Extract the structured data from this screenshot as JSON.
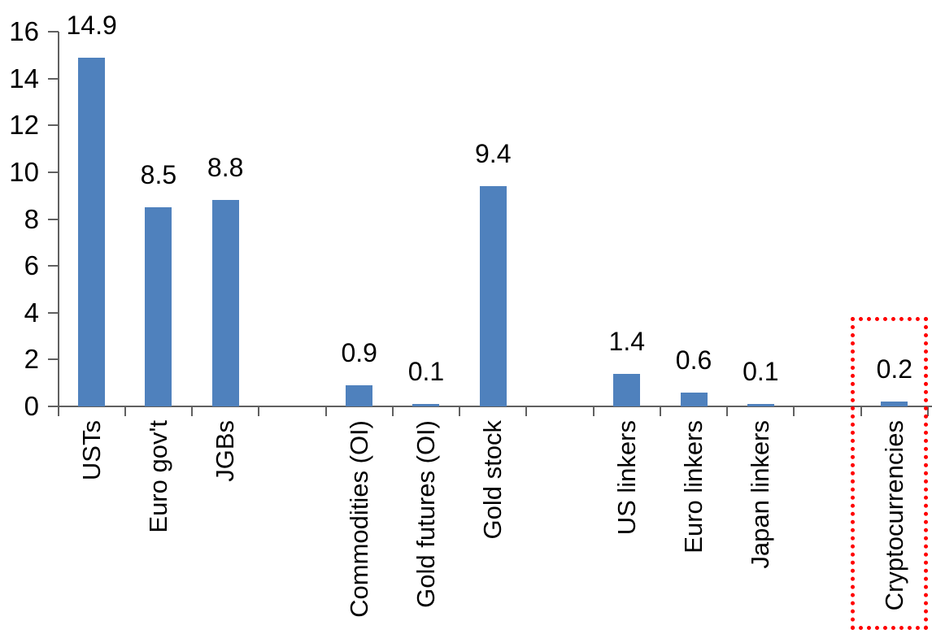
{
  "chart_data": {
    "type": "bar",
    "title": "",
    "categories": [
      "USTs",
      "Euro gov't",
      "JGBs",
      "Commodities (OI)",
      "Gold futures (OI)",
      "Gold stock",
      "US linkers",
      "Euro linkers",
      "Japan linkers",
      "Cryptocurrencies"
    ],
    "values": [
      14.9,
      8.5,
      8.8,
      0.9,
      0.1,
      9.4,
      1.4,
      0.6,
      0.1,
      0.2
    ],
    "data_labels": [
      "14.9",
      "8.5",
      "8.8",
      "0.9",
      "0.1",
      "9.4",
      "1.4",
      "0.6",
      "0.1",
      "0.2"
    ],
    "group_slots": [
      0,
      1,
      2,
      4,
      5,
      6,
      8,
      9,
      10,
      12
    ],
    "total_slots": 13,
    "xlabel": "",
    "ylabel": "",
    "ylim": [
      0,
      16
    ],
    "ytick_interval": 2,
    "ytick_labels": [
      "0",
      "2",
      "4",
      "6",
      "8",
      "10",
      "12",
      "14",
      "16"
    ],
    "grid": false,
    "legend": false,
    "bar_color": "#4f81bd",
    "axis_color": "#606060",
    "text_color": "#000000",
    "highlight": {
      "category": "Cryptocurrencies",
      "box_color": "#ff0000",
      "box_style": "dotted"
    }
  }
}
